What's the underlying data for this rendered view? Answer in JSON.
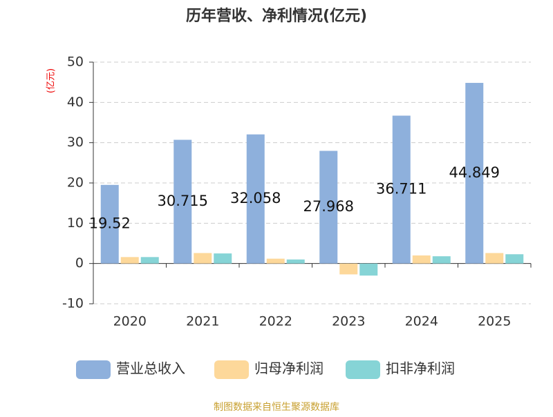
{
  "chart_data": {
    "type": "bar",
    "title": "历年营收、净利情况(亿元)",
    "y_label": "(亿元)",
    "categories": [
      "2020",
      "2021",
      "2022",
      "2023",
      "2024",
      "2025"
    ],
    "series": [
      {
        "name": "营业总收入",
        "color": "#8eb0dc",
        "values": [
          19.52,
          30.715,
          32.058,
          27.968,
          36.711,
          44.849
        ],
        "show_labels": true
      },
      {
        "name": "归母净利润",
        "color": "#fdd89a",
        "values": [
          1.6,
          2.6,
          1.2,
          -2.7,
          2.0,
          2.6
        ]
      },
      {
        "name": "扣非净利润",
        "color": "#86d4d6",
        "values": [
          1.6,
          2.5,
          1.0,
          -3.0,
          1.8,
          2.3
        ]
      }
    ],
    "ylim": [
      -10,
      50
    ],
    "yticks": [
      -10,
      0,
      10,
      20,
      30,
      40,
      50
    ],
    "grid": true,
    "legend": "bottom",
    "source": "制图数据来自恒生聚源数据库"
  }
}
